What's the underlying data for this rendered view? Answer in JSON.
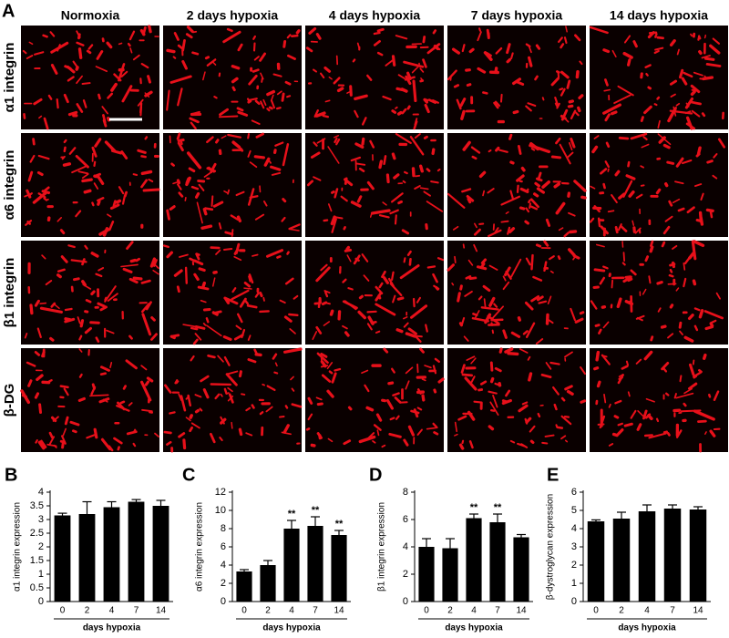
{
  "panel_a": {
    "label": "A",
    "columns": [
      "Normoxia",
      "2 days hypoxia",
      "4 days hypoxia",
      "7 days hypoxia",
      "14 days hypoxia"
    ],
    "rows": [
      "α1 integrin",
      "α6 integrin",
      "β1 integrin",
      "β-DG"
    ]
  },
  "chart_data": [
    {
      "type": "bar",
      "label": "B",
      "y_label": "α1 integrin expression",
      "x_label": "days hypoxia",
      "categories": [
        "0",
        "2",
        "4",
        "7",
        "14"
      ],
      "values": [
        3.15,
        3.2,
        3.45,
        3.65,
        3.5
      ],
      "errors": [
        0.08,
        0.45,
        0.2,
        0.08,
        0.2
      ],
      "color": "#000000",
      "ylim": [
        0,
        4
      ],
      "yticks": [
        0,
        0.5,
        1,
        1.5,
        2,
        2.5,
        3,
        3.5,
        4
      ]
    },
    {
      "type": "bar",
      "label": "C",
      "y_label": "α6 integrin expression",
      "x_label": "days hypoxia",
      "categories": [
        "0",
        "2",
        "4",
        "7",
        "14"
      ],
      "values": [
        3.3,
        4.0,
        8.0,
        8.3,
        7.3
      ],
      "errors": [
        0.2,
        0.5,
        0.9,
        1.0,
        0.5
      ],
      "annotations": [
        null,
        null,
        "**",
        "**",
        "**"
      ],
      "color": "#000000",
      "ylim": [
        0,
        12
      ],
      "yticks": [
        0,
        2,
        4,
        6,
        8,
        10,
        12
      ]
    },
    {
      "type": "bar",
      "label": "D",
      "y_label": "β1 integrin expression",
      "x_label": "days hypoxia",
      "categories": [
        "0",
        "2",
        "4",
        "7",
        "14"
      ],
      "values": [
        4.0,
        3.9,
        6.1,
        5.8,
        4.7
      ],
      "errors": [
        0.6,
        0.7,
        0.3,
        0.6,
        0.2
      ],
      "annotations": [
        null,
        null,
        "**",
        "**",
        null
      ],
      "color": "#000000",
      "ylim": [
        0,
        8
      ],
      "yticks": [
        0,
        2,
        4,
        6,
        8
      ]
    },
    {
      "type": "bar",
      "label": "E",
      "y_label": "β-dystroglycan expression",
      "x_label": "days hypoxia",
      "categories": [
        "0",
        "2",
        "4",
        "7",
        "14"
      ],
      "values": [
        4.4,
        4.55,
        4.95,
        5.1,
        5.05
      ],
      "errors": [
        0.08,
        0.35,
        0.35,
        0.2,
        0.15
      ],
      "color": "#000000",
      "ylim": [
        0,
        6
      ],
      "yticks": [
        0,
        1,
        2,
        3,
        4,
        5,
        6
      ]
    }
  ]
}
